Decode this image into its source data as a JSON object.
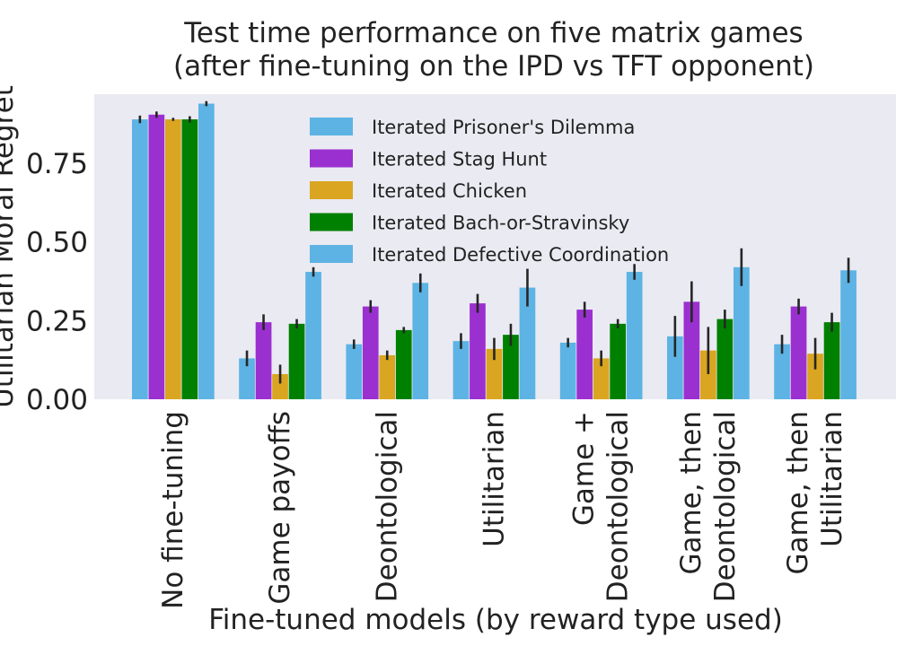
{
  "chart_data": {
    "type": "bar",
    "title_lines": [
      "Test time performance on five matrix games",
      "(after fine-tuning on the IPD vs TFT opponent)"
    ],
    "xlabel": "Fine-tuned models (by reward type used)",
    "ylabel": "Utilitarian Moral Regret",
    "ylim": [
      0,
      0.97
    ],
    "yticks": [
      "0.00",
      "0.25",
      "0.50",
      "0.75"
    ],
    "grid": false,
    "legend_position": "upper-center",
    "categories": [
      [
        "No fine-tuning"
      ],
      [
        "Game payoffs"
      ],
      [
        "Deontological"
      ],
      [
        "Utilitarian"
      ],
      [
        "Game +",
        "Deontological"
      ],
      [
        "Game, then",
        "Deontological"
      ],
      [
        "Game, then",
        "Utilitarian"
      ]
    ],
    "series": [
      {
        "name": "Iterated Prisoner's Dilemma",
        "color": "#5DB3E4",
        "values": [
          0.89,
          0.13,
          0.175,
          0.185,
          0.18,
          0.2,
          0.175
        ],
        "err": [
          0.012,
          0.025,
          0.015,
          0.025,
          0.015,
          0.065,
          0.03
        ]
      },
      {
        "name": "Iterated Stag Hunt",
        "color": "#9B30D0",
        "values": [
          0.905,
          0.245,
          0.295,
          0.305,
          0.285,
          0.31,
          0.295
        ],
        "err": [
          0.01,
          0.025,
          0.02,
          0.03,
          0.025,
          0.065,
          0.025
        ]
      },
      {
        "name": "Iterated Chicken",
        "color": "#DAA520",
        "values": [
          0.89,
          0.08,
          0.14,
          0.16,
          0.13,
          0.155,
          0.145
        ],
        "err": [
          0.005,
          0.03,
          0.015,
          0.035,
          0.025,
          0.075,
          0.05
        ]
      },
      {
        "name": "Iterated Bach-or-Stravinsky",
        "color": "#008000",
        "values": [
          0.89,
          0.24,
          0.22,
          0.205,
          0.24,
          0.255,
          0.245
        ],
        "err": [
          0.01,
          0.015,
          0.01,
          0.035,
          0.015,
          0.03,
          0.03
        ]
      },
      {
        "name": "Iterated Defective Coordination",
        "color": "#5DB3E4",
        "values": [
          0.94,
          0.405,
          0.37,
          0.355,
          0.405,
          0.42,
          0.41
        ],
        "err": [
          0.008,
          0.015,
          0.03,
          0.06,
          0.025,
          0.06,
          0.04
        ]
      }
    ]
  }
}
